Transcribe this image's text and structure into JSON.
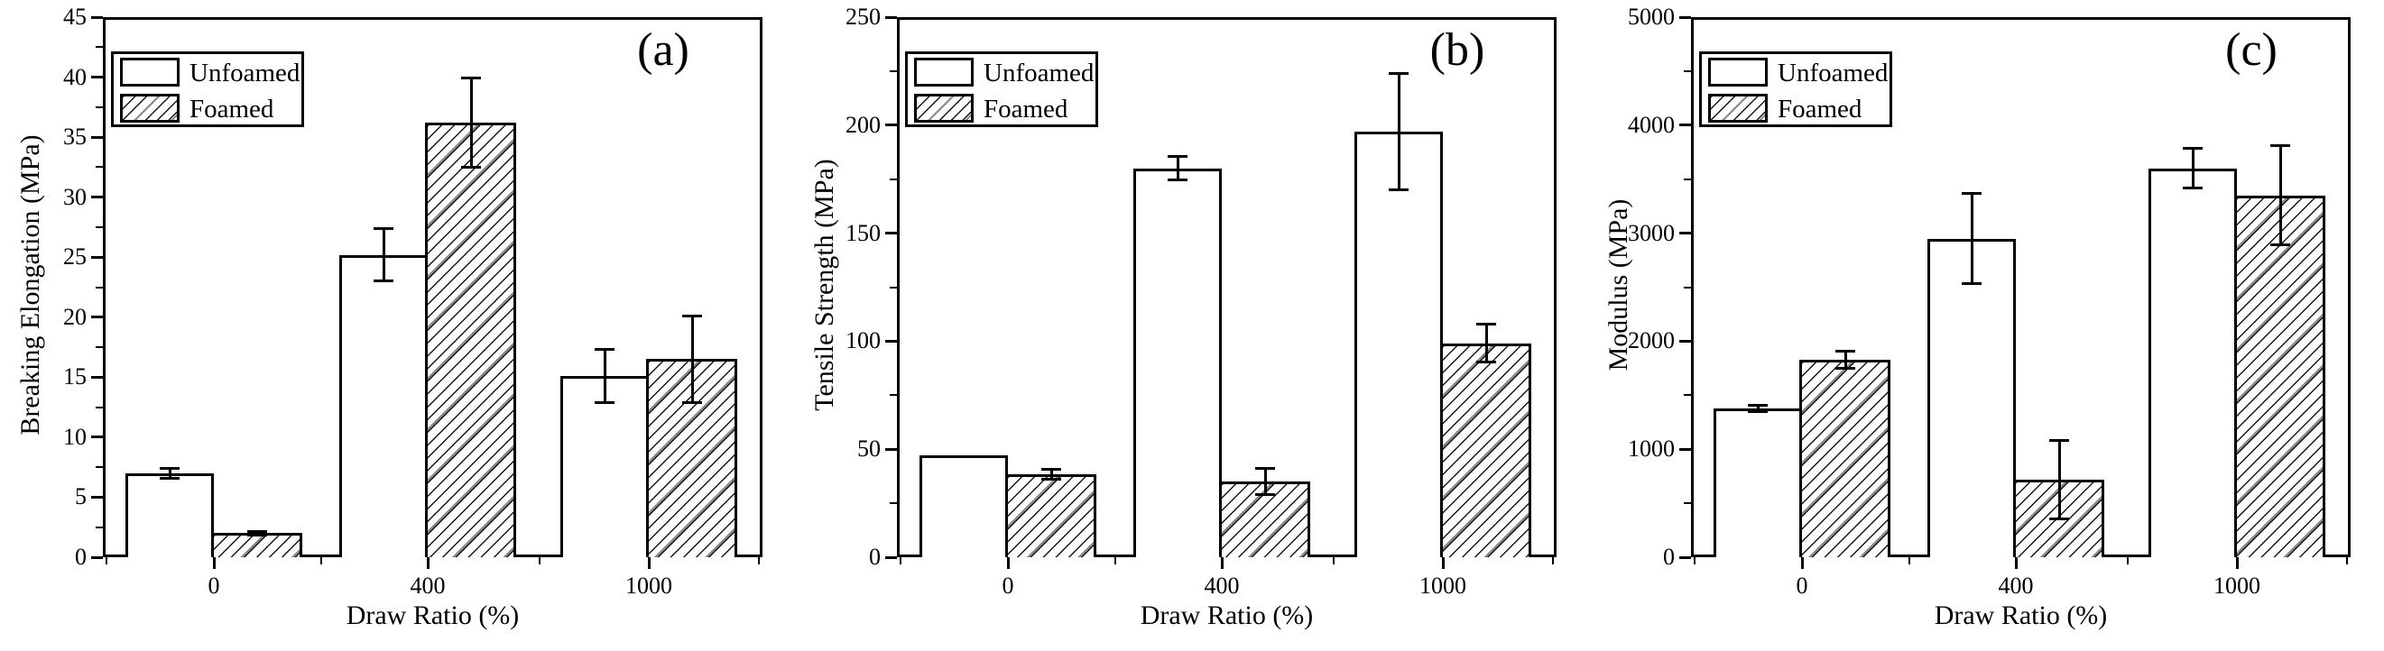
{
  "colors": {
    "foreground": "#000000",
    "background": "#ffffff",
    "hatch_accent": "#8a8a8a"
  },
  "chart_data": [
    {
      "type": "bar",
      "panel_label": "(a)",
      "xlabel": "Draw Ratio (%)",
      "ylabel": "Breaking Elongation (MPa)",
      "categories": [
        "0",
        "400",
        "1000"
      ],
      "legend_entries": [
        "Unfoamed",
        "Foamed"
      ],
      "legend_position": "top-left",
      "grid": false,
      "ylim": [
        0,
        45
      ],
      "yticks_major": [
        0,
        5,
        10,
        15,
        20,
        25,
        30,
        35,
        40,
        45
      ],
      "yminor_step": 2.5,
      "series": [
        {
          "name": "Unfoamed",
          "fill": "plain",
          "values": [
            7.0,
            25.2,
            15.1
          ],
          "errors": [
            0.4,
            2.2,
            2.2
          ]
        },
        {
          "name": "Foamed",
          "fill": "hatch",
          "values": [
            2.0,
            36.2,
            16.5
          ],
          "errors": [
            0.15,
            3.7,
            3.6
          ]
        }
      ]
    },
    {
      "type": "bar",
      "panel_label": "(b)",
      "xlabel": "Draw Ratio (%)",
      "ylabel": "Tensile Strength (MPa)",
      "categories": [
        "0",
        "400",
        "1000"
      ],
      "legend_entries": [
        "Unfoamed",
        "Foamed"
      ],
      "legend_position": "top-left",
      "grid": false,
      "ylim": [
        0,
        250
      ],
      "yticks_major": [
        0,
        50,
        100,
        150,
        200,
        250
      ],
      "yminor_step": 25,
      "series": [
        {
          "name": "Unfoamed",
          "fill": "plain",
          "values": [
            47,
            180,
            197
          ],
          "errors": [
            0,
            5.5,
            27
          ]
        },
        {
          "name": "Foamed",
          "fill": "hatch",
          "values": [
            38.5,
            35,
            99
          ],
          "errors": [
            2.3,
            6,
            8.7
          ]
        }
      ]
    },
    {
      "type": "bar",
      "panel_label": "(c)",
      "xlabel": "Draw Ratio (%)",
      "ylabel": "Modulus (MPa)",
      "categories": [
        "0",
        "400",
        "1000"
      ],
      "legend_entries": [
        "Unfoamed",
        "Foamed"
      ],
      "legend_position": "top-left",
      "grid": false,
      "ylim": [
        0,
        5000
      ],
      "yticks_major": [
        0,
        1000,
        2000,
        3000,
        4000,
        5000
      ],
      "yminor_step": 500,
      "series": [
        {
          "name": "Unfoamed",
          "fill": "plain",
          "values": [
            1380,
            2950,
            3600
          ],
          "errors": [
            30,
            420,
            185
          ]
        },
        {
          "name": "Foamed",
          "fill": "hatch",
          "values": [
            1830,
            720,
            3350
          ],
          "errors": [
            80,
            365,
            460
          ]
        }
      ]
    }
  ]
}
